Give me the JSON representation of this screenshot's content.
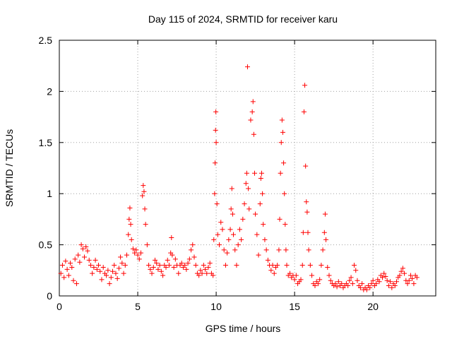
{
  "chart_data": {
    "type": "scatter",
    "title": "Day 115 of 2024, SRMTID for receiver karu",
    "xlabel": "GPS time / hours",
    "ylabel": "SRMTID / TECUs",
    "xlim": [
      0,
      24
    ],
    "ylim": [
      0,
      2.5
    ],
    "xticks": [
      "0",
      "5",
      "10",
      "15",
      "20"
    ],
    "yticks": [
      "0",
      "0.5",
      "1",
      "1.5",
      "2",
      "2.5"
    ],
    "grid": true,
    "marker": "plus",
    "color": "#ff0000",
    "series": [
      {
        "name": "SRMTID",
        "points": [
          [
            0.1,
            0.22
          ],
          [
            0.2,
            0.3
          ],
          [
            0.3,
            0.18
          ],
          [
            0.4,
            0.34
          ],
          [
            0.5,
            0.26
          ],
          [
            0.6,
            0.2
          ],
          [
            0.7,
            0.32
          ],
          [
            0.8,
            0.28
          ],
          [
            0.9,
            0.15
          ],
          [
            1.0,
            0.36
          ],
          [
            1.1,
            0.12
          ],
          [
            1.2,
            0.4
          ],
          [
            1.3,
            0.33
          ],
          [
            1.4,
            0.5
          ],
          [
            1.5,
            0.46
          ],
          [
            1.6,
            0.38
          ],
          [
            1.7,
            0.48
          ],
          [
            1.8,
            0.44
          ],
          [
            1.9,
            0.35
          ],
          [
            2.0,
            0.3
          ],
          [
            2.1,
            0.22
          ],
          [
            2.2,
            0.28
          ],
          [
            2.3,
            0.35
          ],
          [
            2.4,
            0.26
          ],
          [
            2.5,
            0.3
          ],
          [
            2.6,
            0.24
          ],
          [
            2.7,
            0.16
          ],
          [
            2.8,
            0.28
          ],
          [
            2.9,
            0.22
          ],
          [
            3.0,
            0.2
          ],
          [
            3.1,
            0.25
          ],
          [
            3.2,
            0.12
          ],
          [
            3.3,
            0.18
          ],
          [
            3.4,
            0.24
          ],
          [
            3.5,
            0.3
          ],
          [
            3.6,
            0.22
          ],
          [
            3.7,
            0.17
          ],
          [
            3.8,
            0.27
          ],
          [
            3.9,
            0.38
          ],
          [
            4.0,
            0.32
          ],
          [
            4.1,
            0.22
          ],
          [
            4.2,
            0.3
          ],
          [
            4.3,
            0.4
          ],
          [
            4.4,
            0.6
          ],
          [
            4.45,
            0.75
          ],
          [
            4.5,
            0.86
          ],
          [
            4.55,
            0.7
          ],
          [
            4.6,
            0.55
          ],
          [
            4.7,
            0.46
          ],
          [
            4.8,
            0.42
          ],
          [
            4.9,
            0.45
          ],
          [
            5.0,
            0.4
          ],
          [
            5.1,
            0.36
          ],
          [
            5.2,
            0.42
          ],
          [
            5.3,
            0.98
          ],
          [
            5.35,
            1.08
          ],
          [
            5.4,
            1.02
          ],
          [
            5.45,
            0.85
          ],
          [
            5.5,
            0.7
          ],
          [
            5.6,
            0.5
          ],
          [
            5.7,
            0.3
          ],
          [
            5.8,
            0.26
          ],
          [
            5.9,
            0.22
          ],
          [
            6.0,
            0.28
          ],
          [
            6.1,
            0.35
          ],
          [
            6.2,
            0.32
          ],
          [
            6.3,
            0.26
          ],
          [
            6.4,
            0.3
          ],
          [
            6.5,
            0.24
          ],
          [
            6.6,
            0.2
          ],
          [
            6.7,
            0.3
          ],
          [
            6.8,
            0.28
          ],
          [
            6.9,
            0.35
          ],
          [
            7.0,
            0.3
          ],
          [
            7.1,
            0.42
          ],
          [
            7.15,
            0.57
          ],
          [
            7.2,
            0.4
          ],
          [
            7.3,
            0.28
          ],
          [
            7.4,
            0.36
          ],
          [
            7.5,
            0.3
          ],
          [
            7.6,
            0.22
          ],
          [
            7.7,
            0.3
          ],
          [
            7.8,
            0.32
          ],
          [
            7.9,
            0.28
          ],
          [
            8.0,
            0.3
          ],
          [
            8.1,
            0.26
          ],
          [
            8.2,
            0.32
          ],
          [
            8.3,
            0.36
          ],
          [
            8.4,
            0.45
          ],
          [
            8.5,
            0.5
          ],
          [
            8.6,
            0.38
          ],
          [
            8.7,
            0.3
          ],
          [
            8.8,
            0.22
          ],
          [
            8.9,
            0.2
          ],
          [
            9.0,
            0.25
          ],
          [
            9.1,
            0.22
          ],
          [
            9.2,
            0.3
          ],
          [
            9.3,
            0.26
          ],
          [
            9.4,
            0.22
          ],
          [
            9.5,
            0.28
          ],
          [
            9.6,
            0.32
          ],
          [
            9.7,
            0.22
          ],
          [
            9.8,
            0.2
          ],
          [
            9.85,
            0.55
          ],
          [
            9.9,
            1.0
          ],
          [
            9.93,
            1.3
          ],
          [
            9.96,
            1.62
          ],
          [
            9.98,
            1.8
          ],
          [
            10.0,
            1.5
          ],
          [
            10.05,
            0.9
          ],
          [
            10.1,
            0.6
          ],
          [
            10.2,
            0.5
          ],
          [
            10.3,
            0.72
          ],
          [
            10.4,
            0.65
          ],
          [
            10.5,
            0.45
          ],
          [
            10.6,
            0.3
          ],
          [
            10.7,
            0.42
          ],
          [
            10.8,
            0.55
          ],
          [
            10.9,
            0.65
          ],
          [
            10.95,
            0.85
          ],
          [
            11.0,
            1.05
          ],
          [
            11.05,
            0.8
          ],
          [
            11.1,
            0.6
          ],
          [
            11.2,
            0.45
          ],
          [
            11.3,
            0.3
          ],
          [
            11.4,
            0.5
          ],
          [
            11.5,
            0.65
          ],
          [
            11.6,
            0.55
          ],
          [
            11.7,
            0.75
          ],
          [
            11.8,
            0.9
          ],
          [
            11.9,
            1.1
          ],
          [
            11.95,
            1.2
          ],
          [
            12.0,
            2.24
          ],
          [
            12.05,
            1.05
          ],
          [
            12.1,
            0.85
          ],
          [
            12.2,
            1.72
          ],
          [
            12.3,
            1.8
          ],
          [
            12.35,
            1.9
          ],
          [
            12.4,
            1.58
          ],
          [
            12.45,
            1.2
          ],
          [
            12.5,
            0.8
          ],
          [
            12.6,
            0.6
          ],
          [
            12.7,
            0.4
          ],
          [
            12.8,
            0.9
          ],
          [
            12.85,
            1.15
          ],
          [
            12.9,
            1.2
          ],
          [
            12.95,
            1.0
          ],
          [
            13.0,
            0.7
          ],
          [
            13.1,
            0.55
          ],
          [
            13.2,
            0.45
          ],
          [
            13.3,
            0.35
          ],
          [
            13.4,
            0.3
          ],
          [
            13.5,
            0.25
          ],
          [
            13.6,
            0.3
          ],
          [
            13.7,
            0.22
          ],
          [
            13.8,
            0.28
          ],
          [
            13.9,
            0.3
          ],
          [
            14.0,
            0.45
          ],
          [
            14.05,
            0.75
          ],
          [
            14.1,
            1.2
          ],
          [
            14.15,
            1.5
          ],
          [
            14.2,
            1.72
          ],
          [
            14.25,
            1.6
          ],
          [
            14.3,
            1.3
          ],
          [
            14.35,
            1.0
          ],
          [
            14.4,
            0.7
          ],
          [
            14.45,
            0.45
          ],
          [
            14.5,
            0.3
          ],
          [
            14.6,
            0.2
          ],
          [
            14.7,
            0.22
          ],
          [
            14.8,
            0.18
          ],
          [
            14.9,
            0.2
          ],
          [
            15.0,
            0.16
          ],
          [
            15.1,
            0.2
          ],
          [
            15.2,
            0.12
          ],
          [
            15.3,
            0.14
          ],
          [
            15.4,
            0.16
          ],
          [
            15.5,
            0.3
          ],
          [
            15.55,
            0.62
          ],
          [
            15.6,
            1.8
          ],
          [
            15.65,
            2.06
          ],
          [
            15.7,
            1.27
          ],
          [
            15.75,
            0.92
          ],
          [
            15.8,
            0.82
          ],
          [
            15.85,
            0.62
          ],
          [
            15.9,
            0.45
          ],
          [
            16.0,
            0.3
          ],
          [
            16.1,
            0.2
          ],
          [
            16.2,
            0.12
          ],
          [
            16.3,
            0.1
          ],
          [
            16.4,
            0.14
          ],
          [
            16.5,
            0.12
          ],
          [
            16.6,
            0.16
          ],
          [
            16.7,
            0.3
          ],
          [
            16.8,
            0.45
          ],
          [
            16.9,
            0.62
          ],
          [
            16.95,
            0.8
          ],
          [
            17.0,
            0.55
          ],
          [
            17.1,
            0.28
          ],
          [
            17.2,
            0.2
          ],
          [
            17.3,
            0.15
          ],
          [
            17.4,
            0.12
          ],
          [
            17.5,
            0.1
          ],
          [
            17.6,
            0.12
          ],
          [
            17.7,
            0.09
          ],
          [
            17.8,
            0.14
          ],
          [
            17.9,
            0.1
          ],
          [
            18.0,
            0.12
          ],
          [
            18.1,
            0.08
          ],
          [
            18.2,
            0.1
          ],
          [
            18.3,
            0.12
          ],
          [
            18.4,
            0.1
          ],
          [
            18.5,
            0.15
          ],
          [
            18.6,
            0.18
          ],
          [
            18.7,
            0.12
          ],
          [
            18.8,
            0.3
          ],
          [
            18.9,
            0.25
          ],
          [
            19.0,
            0.15
          ],
          [
            19.1,
            0.1
          ],
          [
            19.2,
            0.08
          ],
          [
            19.3,
            0.12
          ],
          [
            19.4,
            0.06
          ],
          [
            19.5,
            0.08
          ],
          [
            19.6,
            0.06
          ],
          [
            19.7,
            0.1
          ],
          [
            19.8,
            0.08
          ],
          [
            19.9,
            0.12
          ],
          [
            20.0,
            0.15
          ],
          [
            20.1,
            0.1
          ],
          [
            20.2,
            0.12
          ],
          [
            20.3,
            0.16
          ],
          [
            20.4,
            0.14
          ],
          [
            20.5,
            0.2
          ],
          [
            20.6,
            0.18
          ],
          [
            20.7,
            0.22
          ],
          [
            20.8,
            0.19
          ],
          [
            20.9,
            0.15
          ],
          [
            21.0,
            0.1
          ],
          [
            21.1,
            0.14
          ],
          [
            21.2,
            0.08
          ],
          [
            21.3,
            0.12
          ],
          [
            21.4,
            0.1
          ],
          [
            21.5,
            0.14
          ],
          [
            21.6,
            0.18
          ],
          [
            21.7,
            0.2
          ],
          [
            21.8,
            0.24
          ],
          [
            21.9,
            0.27
          ],
          [
            22.0,
            0.22
          ],
          [
            22.1,
            0.15
          ],
          [
            22.2,
            0.12
          ],
          [
            22.3,
            0.15
          ],
          [
            22.4,
            0.2
          ],
          [
            22.5,
            0.17
          ],
          [
            22.6,
            0.12
          ],
          [
            22.7,
            0.2
          ],
          [
            22.8,
            0.18
          ]
        ]
      }
    ]
  }
}
